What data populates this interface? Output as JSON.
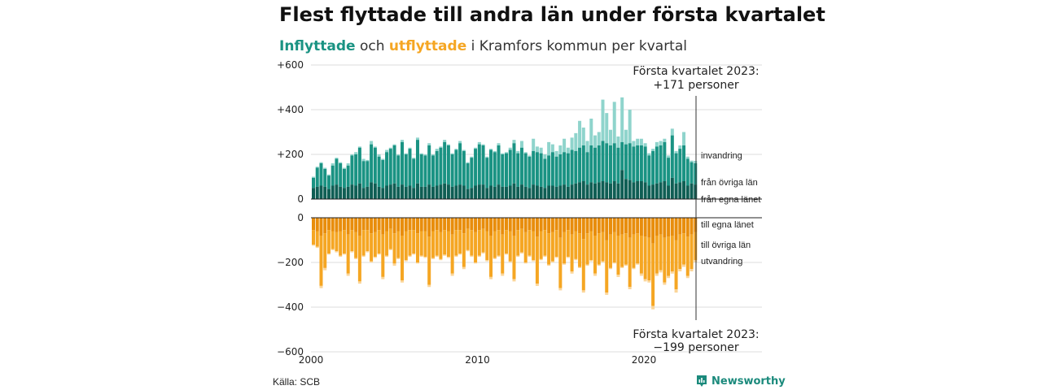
{
  "title": "Flest flyttade till andra län under första kvartalet",
  "subtitle": {
    "part1": "Inflyttade",
    "part2": " och ",
    "part3": "utflyttade",
    "part4": " i Kramfors kommun per kvartal"
  },
  "colors": {
    "invandring": "#8fd4cc",
    "fran_ovriga_lan": "#1a9383",
    "fran_egna_lanet": "#0f5e54",
    "till_egna_lanet": "#e88d0c",
    "till_ovriga_lan": "#f5a623",
    "utvandring": "#fbd598"
  },
  "chart_data": {
    "type": "bar",
    "stacked": true,
    "x_start_year": 2000,
    "x_end_year": 2023,
    "x_ticks": [
      2000,
      2010,
      2020
    ],
    "y_ticks_top": [
      "+600",
      "+400",
      "+200",
      "0"
    ],
    "y_ticks_bottom": [
      "0",
      "−200",
      "−400",
      "−600"
    ],
    "ylim_top": [
      0,
      600
    ],
    "ylim_bottom": [
      -600,
      0
    ],
    "grid": true,
    "series_labels": {
      "invandring": "invandring",
      "fran_ovriga_lan": "från övriga län",
      "fran_egna_lanet": "från egna länet",
      "till_egna_lanet": "till egna länet",
      "till_ovriga_lan": "till övriga län",
      "utvandring": "utvandring"
    },
    "annotation_top": [
      "Första kvartalet 2023:",
      "+171 personer"
    ],
    "annotation_bottom": [
      "Första kvartalet 2023:",
      "−199 personer"
    ],
    "in_totals": [
      100,
      145,
      165,
      140,
      110,
      160,
      185,
      165,
      140,
      160,
      200,
      210,
      235,
      180,
      175,
      260,
      235,
      200,
      180,
      220,
      230,
      245,
      200,
      265,
      205,
      230,
      185,
      275,
      205,
      200,
      250,
      200,
      225,
      235,
      265,
      245,
      205,
      225,
      260,
      220,
      165,
      190,
      230,
      255,
      245,
      190,
      225,
      215,
      250,
      205,
      210,
      230,
      265,
      215,
      260,
      210,
      195,
      270,
      235,
      230,
      200,
      255,
      245,
      215,
      240,
      270,
      230,
      275,
      295,
      350,
      320,
      260,
      360,
      285,
      300,
      445,
      385,
      310,
      435,
      280,
      455,
      310,
      400,
      260,
      270,
      270,
      250,
      205,
      225,
      255,
      260,
      270,
      195,
      315,
      215,
      240,
      300,
      190,
      172,
      171
    ],
    "in_domestic": [
      95,
      140,
      160,
      135,
      105,
      150,
      180,
      160,
      135,
      150,
      195,
      200,
      230,
      170,
      170,
      245,
      230,
      190,
      175,
      210,
      225,
      240,
      195,
      255,
      200,
      225,
      180,
      265,
      200,
      195,
      240,
      195,
      215,
      230,
      255,
      240,
      200,
      220,
      250,
      215,
      160,
      185,
      225,
      245,
      240,
      185,
      220,
      210,
      240,
      200,
      205,
      220,
      250,
      205,
      230,
      205,
      190,
      215,
      210,
      205,
      180,
      195,
      210,
      190,
      200,
      210,
      205,
      220,
      215,
      230,
      240,
      210,
      240,
      230,
      240,
      260,
      250,
      240,
      250,
      230,
      255,
      245,
      250,
      235,
      240,
      240,
      235,
      195,
      215,
      235,
      240,
      255,
      185,
      285,
      205,
      225,
      240,
      180,
      165,
      160
    ],
    "in_own_lan": [
      50,
      55,
      60,
      55,
      45,
      60,
      65,
      55,
      50,
      55,
      65,
      60,
      70,
      50,
      55,
      75,
      70,
      55,
      50,
      60,
      65,
      70,
      55,
      65,
      55,
      60,
      50,
      70,
      55,
      55,
      65,
      55,
      60,
      65,
      70,
      65,
      55,
      60,
      65,
      60,
      45,
      50,
      60,
      65,
      65,
      50,
      60,
      55,
      65,
      55,
      55,
      60,
      70,
      55,
      65,
      55,
      50,
      65,
      60,
      55,
      50,
      60,
      60,
      55,
      60,
      65,
      55,
      65,
      70,
      75,
      80,
      65,
      75,
      70,
      75,
      80,
      75,
      70,
      80,
      70,
      130,
      90,
      85,
      75,
      80,
      80,
      75,
      60,
      65,
      70,
      75,
      80,
      60,
      95,
      70,
      75,
      80,
      60,
      70,
      65
    ],
    "out_totals": [
      -125,
      -135,
      -315,
      -235,
      -165,
      -145,
      -155,
      -175,
      -165,
      -260,
      -155,
      -185,
      -295,
      -175,
      -155,
      -200,
      -180,
      -165,
      -275,
      -175,
      -145,
      -215,
      -185,
      -290,
      -195,
      -175,
      -165,
      -205,
      -175,
      -180,
      -310,
      -185,
      -175,
      -190,
      -170,
      -180,
      -260,
      -175,
      -165,
      -230,
      -150,
      -175,
      -205,
      -175,
      -160,
      -195,
      -275,
      -185,
      -175,
      -260,
      -165,
      -200,
      -285,
      -175,
      -160,
      -205,
      -175,
      -195,
      -305,
      -190,
      -175,
      -215,
      -200,
      -180,
      -325,
      -210,
      -180,
      -250,
      -190,
      -225,
      -335,
      -215,
      -195,
      -260,
      -215,
      -200,
      -345,
      -230,
      -205,
      -265,
      -225,
      -215,
      -320,
      -230,
      -210,
      -260,
      -285,
      -290,
      -410,
      -260,
      -245,
      -300,
      -270,
      -250,
      -335,
      -240,
      -220,
      -270,
      -240,
      -199
    ],
    "out_domestic": [
      -120,
      -130,
      -305,
      -225,
      -160,
      -140,
      -150,
      -170,
      -160,
      -250,
      -150,
      -180,
      -285,
      -170,
      -150,
      -195,
      -175,
      -160,
      -265,
      -170,
      -140,
      -205,
      -180,
      -280,
      -190,
      -170,
      -160,
      -200,
      -170,
      -175,
      -300,
      -180,
      -170,
      -185,
      -165,
      -175,
      -250,
      -170,
      -160,
      -220,
      -145,
      -170,
      -200,
      -170,
      -155,
      -190,
      -265,
      -180,
      -170,
      -250,
      -160,
      -195,
      -275,
      -170,
      -155,
      -200,
      -170,
      -190,
      -295,
      -185,
      -170,
      -210,
      -195,
      -175,
      -315,
      -205,
      -175,
      -240,
      -185,
      -220,
      -325,
      -210,
      -190,
      -250,
      -210,
      -195,
      -335,
      -225,
      -200,
      -255,
      -220,
      -210,
      -310,
      -225,
      -205,
      -250,
      -275,
      -280,
      -395,
      -250,
      -235,
      -290,
      -260,
      -240,
      -320,
      -230,
      -210,
      -260,
      -230,
      -190
    ],
    "out_own_lan": [
      -55,
      -60,
      -80,
      -70,
      -55,
      -60,
      -65,
      -60,
      -55,
      -75,
      -55,
      -65,
      -80,
      -55,
      -55,
      -70,
      -65,
      -55,
      -75,
      -60,
      -50,
      -70,
      -60,
      -80,
      -60,
      -55,
      -55,
      -70,
      -60,
      -60,
      -85,
      -60,
      -55,
      -65,
      -55,
      -60,
      -75,
      -55,
      -55,
      -70,
      -50,
      -55,
      -65,
      -55,
      -50,
      -60,
      -80,
      -60,
      -55,
      -75,
      -55,
      -60,
      -80,
      -55,
      -50,
      -65,
      -55,
      -60,
      -85,
      -60,
      -55,
      -70,
      -65,
      -55,
      -90,
      -65,
      -55,
      -75,
      -60,
      -70,
      -95,
      -70,
      -60,
      -80,
      -70,
      -65,
      -100,
      -75,
      -65,
      -80,
      -75,
      -70,
      -90,
      -75,
      -70,
      -80,
      -85,
      -90,
      -115,
      -80,
      -75,
      -90,
      -85,
      -80,
      -100,
      -75,
      -70,
      -85,
      -75,
      -65
    ]
  },
  "source": "Källa: SCB",
  "brand": "Newsworthy"
}
